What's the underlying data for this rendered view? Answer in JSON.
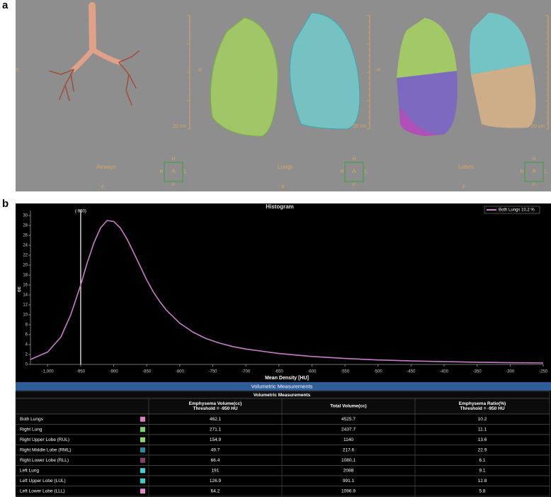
{
  "panel_a": {
    "label": "a",
    "views": [
      {
        "name": "Airways",
        "side_label": "R",
        "bottom_label": "F",
        "scale": "20 cm",
        "orientation": {
          "top": "H",
          "left": "R",
          "center": "A",
          "right": "L",
          "bottom": "F"
        }
      },
      {
        "name": "Lungs",
        "side_label": "R",
        "bottom_label": "F",
        "scale": "20 cm",
        "orientation": {
          "top": "H",
          "left": "R",
          "center": "A",
          "right": "L",
          "bottom": "F"
        }
      },
      {
        "name": "Lobes",
        "side_label": "R",
        "bottom_label": "F",
        "scale": "20 cm",
        "orientation": {
          "top": "H",
          "left": "R",
          "center": "A",
          "right": "L",
          "bottom": "F"
        }
      }
    ]
  },
  "panel_b_label": "b",
  "chart_data": {
    "type": "line",
    "title": "Histogram",
    "x_label": "Mean Density [HU]",
    "y_label": "cc",
    "x": [
      -1026,
      -1000,
      -980,
      -965,
      -950,
      -940,
      -930,
      -920,
      -910,
      -900,
      -890,
      -880,
      -870,
      -860,
      -850,
      -840,
      -830,
      -820,
      -800,
      -780,
      -760,
      -740,
      -720,
      -700,
      -650,
      -600,
      -550,
      -500,
      -450,
      -400,
      -350,
      -300,
      -250
    ],
    "series": [
      {
        "name": "Both Lungs 10.2 %",
        "color": "#c77dc9",
        "values": [
          1,
          2.5,
          5.5,
          10,
          16,
          20.5,
          24.5,
          27.5,
          29,
          28.8,
          27.5,
          25.3,
          22.6,
          19.8,
          17,
          14.6,
          12.6,
          10.9,
          8.3,
          6.5,
          5.2,
          4.3,
          3.6,
          3.1,
          2.2,
          1.6,
          1.2,
          0.9,
          0.7,
          0.55,
          0.45,
          0.35,
          0.3
        ]
      }
    ],
    "threshold": {
      "value": -950,
      "label": "(-950)"
    },
    "xlim": [
      -1026,
      -250
    ],
    "ylim": [
      0,
      31
    ],
    "xticks": [
      {
        "value": -1000,
        "label": "-1,000"
      },
      -950,
      -900,
      -850,
      -800,
      -750,
      -700,
      -650,
      -600,
      -550,
      -500,
      -450,
      -400,
      -350,
      -300,
      -250
    ],
    "yticks": [
      0,
      2,
      4,
      6,
      8,
      10,
      12,
      14,
      16,
      18,
      20,
      22,
      24,
      26,
      28,
      30
    ],
    "legend": "top-right"
  },
  "table": {
    "title": "Volumetric Measurements",
    "subtitle": "Volumetric Measurements",
    "columns": [
      [
        "Emphysema Volume(cc)",
        "Threshold = -950 HU"
      ],
      [
        "Total Volume(cc)"
      ],
      [
        "Emphysema Ratio(%)",
        "Threshold = -950 HU"
      ]
    ],
    "rows": [
      {
        "name": "Both Lungs",
        "color": "#d97fc4",
        "values": [
          462.1,
          4525.7,
          10.2
        ]
      },
      {
        "name": "Right Lung",
        "color": "#7fcf6a",
        "values": [
          271.1,
          2437.7,
          11.1
        ]
      },
      {
        "name": "Right Upper Lobe (RUL)",
        "color": "#8fd46e",
        "values": [
          154.9,
          1140,
          13.6
        ]
      },
      {
        "name": "Right Middle Lobe (RML)",
        "color": "#2b8aa0",
        "values": [
          49.7,
          217.6,
          22.9
        ]
      },
      {
        "name": "Right Lower Lobe (RLL)",
        "color": "#8a3f6a",
        "values": [
          66.4,
          1080.1,
          6.1
        ]
      },
      {
        "name": "Left Lung",
        "color": "#3fd0d8",
        "values": [
          191,
          2088,
          9.1
        ]
      },
      {
        "name": "Left Upper Lobe (LUL)",
        "color": "#3ccfc0",
        "values": [
          126.9,
          991.1,
          12.8
        ]
      },
      {
        "name": "Left Lower Lobe (LLL)",
        "color": "#e08ac8",
        "values": [
          64.2,
          1096.9,
          5.8
        ]
      }
    ]
  }
}
